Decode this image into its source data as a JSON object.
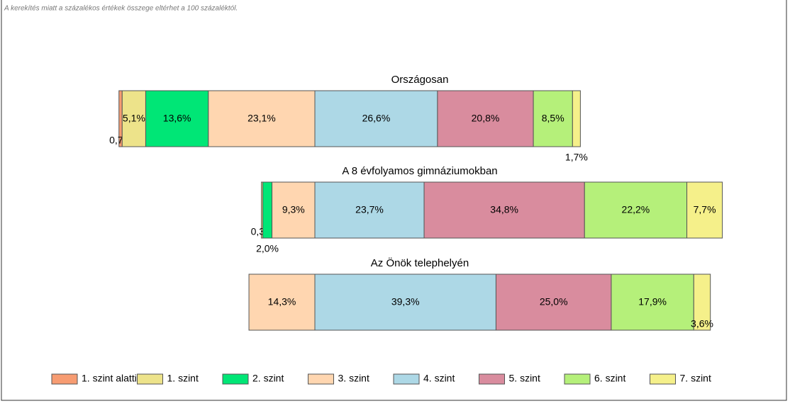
{
  "chart_data": {
    "type": "diverging-bar",
    "subtitle": "A kerekítés miatt a százalékos értékek összege eltérhet a 100 százaléktól.",
    "categories": [
      "Országosan",
      "A 8 évfolyamos gimnáziumokban",
      "Az Önök telephelyén"
    ],
    "series": [
      {
        "name": "1. szint alatti",
        "color": "#f79c72",
        "values": [
          0.7,
          null,
          null
        ],
        "value_labels": [
          "0,7%",
          null,
          null
        ]
      },
      {
        "name": "1. szint",
        "color": "#ede38a",
        "values": [
          5.1,
          0.3,
          null
        ],
        "value_labels": [
          "5,1%",
          "0,3%",
          null
        ]
      },
      {
        "name": "2. szint",
        "color": "#00e676",
        "values": [
          13.6,
          2.0,
          null
        ],
        "value_labels": [
          "13,6%",
          "2,0%",
          null
        ]
      },
      {
        "name": "3. szint",
        "color": "#ffd6b0",
        "values": [
          23.1,
          9.3,
          14.3
        ],
        "value_labels": [
          "23,1%",
          "9,3%",
          "14,3%"
        ]
      },
      {
        "name": "4. szint",
        "color": "#add8e6",
        "values": [
          26.6,
          23.7,
          39.3
        ],
        "value_labels": [
          "26,6%",
          "23,7%",
          "39,3%"
        ]
      },
      {
        "name": "5. szint",
        "color": "#d98c9e",
        "values": [
          20.8,
          34.8,
          25.0
        ],
        "value_labels": [
          "20,8%",
          "34,8%",
          "25,0%"
        ]
      },
      {
        "name": "6. szint",
        "color": "#b5f07a",
        "values": [
          8.5,
          22.2,
          17.9
        ],
        "value_labels": [
          "8,5%",
          "22,2%",
          "17,9%"
        ]
      },
      {
        "name": "7. szint",
        "color": "#f5f08a",
        "values": [
          1.7,
          7.7,
          3.6
        ],
        "value_labels": [
          "1,7%",
          "7,7%",
          "3,6%"
        ]
      }
    ]
  }
}
